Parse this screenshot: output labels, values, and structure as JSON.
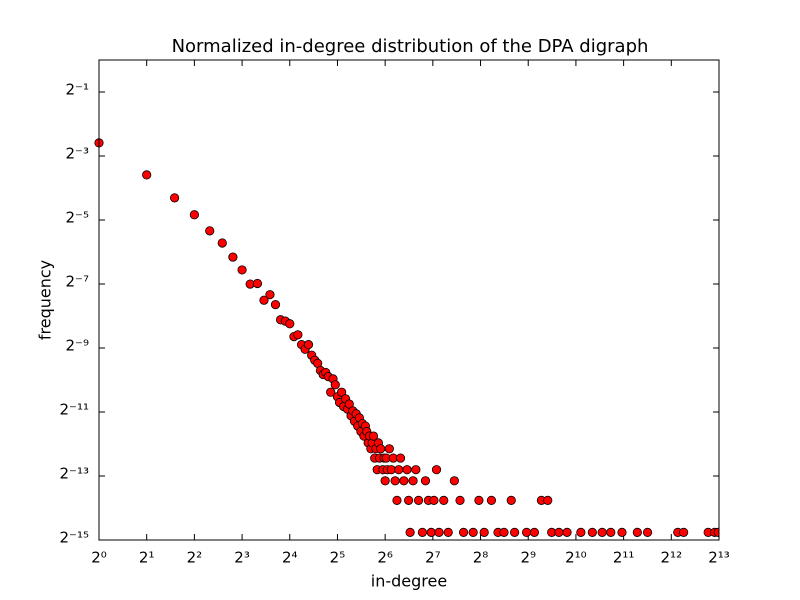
{
  "chart_data": {
    "type": "scatter",
    "title": "Normalized in-degree distribution of the DPA digraph",
    "xlabel": "in-degree",
    "ylabel": "frequency",
    "xscale": "log",
    "yscale": "log",
    "log_base": 2,
    "color": "#ff0000",
    "edgecolor": "#000000",
    "xlim": [
      1,
      8192
    ],
    "ylim": [
      3.0517578125e-05,
      1
    ],
    "xticks": [
      {
        "value": 1,
        "label": "2⁰"
      },
      {
        "value": 2,
        "label": "2¹"
      },
      {
        "value": 4,
        "label": "2²"
      },
      {
        "value": 8,
        "label": "2³"
      },
      {
        "value": 16,
        "label": "2⁴"
      },
      {
        "value": 32,
        "label": "2⁵"
      },
      {
        "value": 64,
        "label": "2⁶"
      },
      {
        "value": 128,
        "label": "2⁷"
      },
      {
        "value": 256,
        "label": "2⁸"
      },
      {
        "value": 512,
        "label": "2⁹"
      },
      {
        "value": 1024,
        "label": "2¹⁰"
      },
      {
        "value": 2048,
        "label": "2¹¹"
      },
      {
        "value": 4096,
        "label": "2¹²"
      },
      {
        "value": 8192,
        "label": "2¹³"
      }
    ],
    "yticks": [
      {
        "value": 0.5,
        "label": "2⁻¹"
      },
      {
        "value": 0.125,
        "label": "2⁻³"
      },
      {
        "value": 0.03125,
        "label": "2⁻⁵"
      },
      {
        "value": 0.0078125,
        "label": "2⁻⁷"
      },
      {
        "value": 0.001953125,
        "label": "2⁻⁹"
      },
      {
        "value": 0.00048828125,
        "label": "2⁻¹¹"
      },
      {
        "value": 0.0001220703125,
        "label": "2⁻¹³"
      },
      {
        "value": 3.0517578125e-05,
        "label": "2⁻¹⁵"
      }
    ],
    "x": [
      1,
      2,
      3,
      4,
      5,
      6,
      7,
      8,
      9,
      10,
      11,
      12,
      13,
      14,
      15,
      16,
      17,
      18,
      19,
      20,
      21,
      22,
      23,
      24,
      25,
      26,
      27,
      28,
      29,
      30,
      31,
      32,
      33,
      34,
      35,
      36,
      37,
      38,
      39,
      40,
      41,
      42,
      43,
      44,
      45,
      46,
      47,
      48,
      49,
      50,
      51,
      52,
      53,
      54,
      55,
      56,
      57,
      58,
      59,
      60,
      62,
      63,
      64,
      65,
      66,
      68,
      70,
      72,
      74,
      76,
      78,
      80,
      84,
      88,
      90,
      92,
      96,
      100,
      104,
      110,
      115,
      120,
      125,
      130,
      135,
      140,
      150,
      160,
      175,
      190,
      200,
      230,
      250,
      270,
      300,
      330,
      360,
      400,
      420,
      500,
      560,
      620,
      680,
      720,
      800,
      900,
      1100,
      1300,
      1500,
      1700,
      2000,
      2500,
      2900,
      4500,
      4900,
      7000,
      7700,
      8100
    ],
    "y": [
      0.166,
      0.083,
      0.0505,
      0.035,
      0.0247,
      0.019,
      0.014,
      0.0106,
      0.0078,
      0.0079,
      0.0055,
      0.0062,
      0.005,
      0.0036,
      0.0035,
      0.0033,
      0.0025,
      0.0026,
      0.0021,
      0.0019,
      0.0021,
      0.00167,
      0.0015,
      0.0014,
      0.0012,
      0.0011,
      0.00115,
      0.00105,
      0.00075,
      0.001,
      0.00088,
      0.00068,
      0.0006,
      0.00075,
      0.00055,
      0.00065,
      0.00052,
      0.00058,
      0.00045,
      0.0005,
      0.0004,
      0.00047,
      0.00036,
      0.00043,
      0.00032,
      0.00038,
      0.00029,
      0.00036,
      0.00032,
      0.00025,
      0.00029,
      0.00022,
      0.00025,
      0.00029,
      0.00018,
      0.00022,
      0.00014,
      0.00025,
      0.00018,
      0.00022,
      0.00014,
      0.00018,
      0.00011,
      0.00018,
      0.00014,
      0.00022,
      0.00014,
      0.00018,
      0.00011,
      7.2e-05,
      0.00014,
      0.00018,
      0.00011,
      0.00014,
      7.2e-05,
      3.6e-05,
      0.00011,
      0.00014,
      7.2e-05,
      3.6e-05,
      0.00011,
      7.2e-05,
      3.6e-05,
      7.2e-05,
      0.00014,
      3.6e-05,
      7.2e-05,
      3.6e-05,
      0.00011,
      7.2e-05,
      3.6e-05,
      3.6e-05,
      7.2e-05,
      3.6e-05,
      7.2e-05,
      3.6e-05,
      3.6e-05,
      7.2e-05,
      3.6e-05,
      3.6e-05,
      3.6e-05,
      7.2e-05,
      7.2e-05,
      3.6e-05,
      3.6e-05,
      3.6e-05,
      3.6e-05,
      3.6e-05,
      3.6e-05,
      3.6e-05,
      3.6e-05,
      3.6e-05,
      3.6e-05,
      3.6e-05,
      3.6e-05,
      3.6e-05,
      3.6e-05,
      3.6e-05
    ]
  }
}
